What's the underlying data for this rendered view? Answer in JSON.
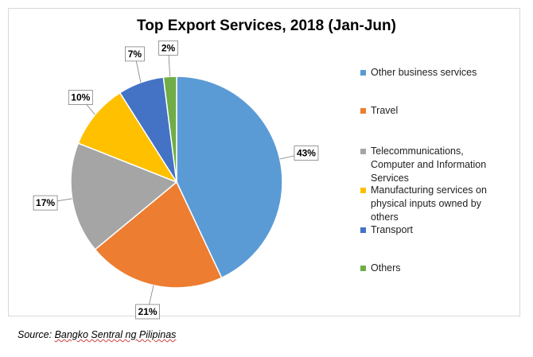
{
  "chart_data": {
    "type": "pie",
    "title": "Top Export Services, 2018 (Jan-Jun)",
    "legend_position": "right",
    "slices": [
      {
        "name": "Other business services",
        "value": 43,
        "label": "43%",
        "color": "#5b9bd5"
      },
      {
        "name": "Travel",
        "value": 21,
        "label": "21%",
        "color": "#ed7d31"
      },
      {
        "name": "Telecommunications, Computer and Information Services",
        "value": 17,
        "label": "17%",
        "color": "#a5a5a5"
      },
      {
        "name": "Manufacturing services on physical inputs owned by others",
        "value": 10,
        "label": "10%",
        "color": "#ffc000"
      },
      {
        "name": "Transport",
        "value": 7,
        "label": "7%",
        "color": "#4472c4"
      },
      {
        "name": "Others",
        "value": 2,
        "label": "2%",
        "color": "#70ad47"
      }
    ]
  },
  "source": {
    "prefix": "Source: ",
    "org": "Bangko Sentral ng Pilipinas"
  }
}
